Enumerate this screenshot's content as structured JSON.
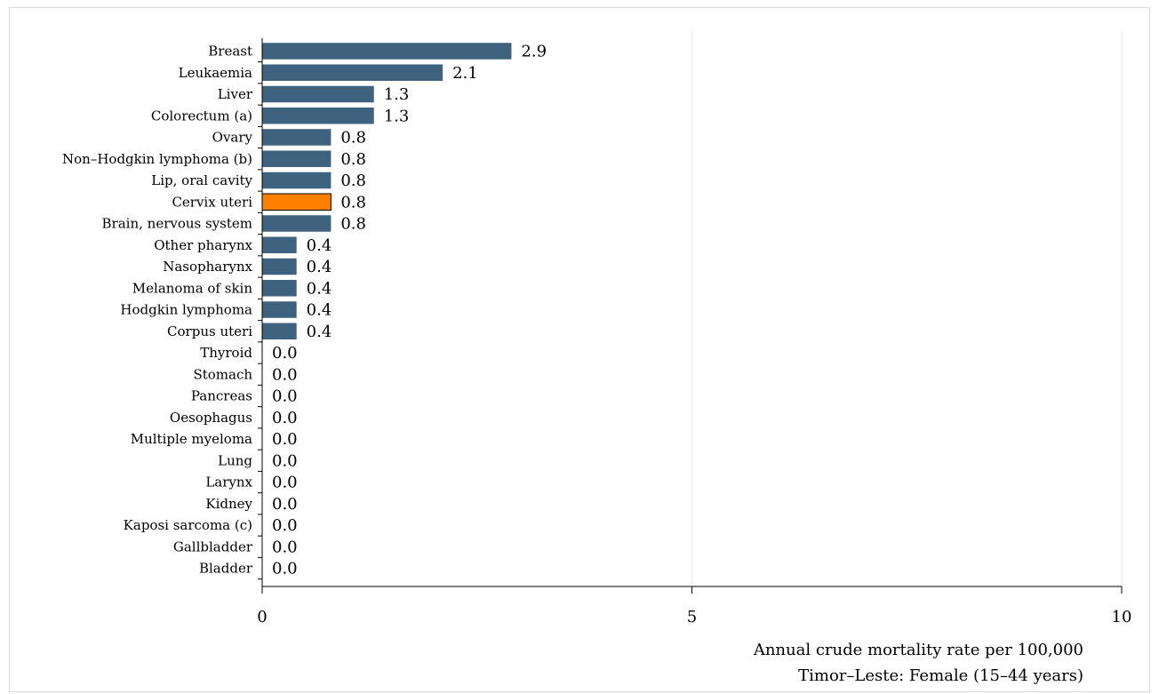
{
  "chart_data": {
    "type": "bar",
    "orientation": "horizontal",
    "categories": [
      "Breast",
      "Leukaemia",
      "Liver",
      "Colorectum (a)",
      "Ovary",
      "Non–Hodgkin lymphoma (b)",
      "Lip, oral cavity",
      "Cervix uteri",
      "Brain, nervous system",
      "Other pharynx",
      "Nasopharynx",
      "Melanoma of skin",
      "Hodgkin lymphoma",
      "Corpus uteri",
      "Thyroid",
      "Stomach",
      "Pancreas",
      "Oesophagus",
      "Multiple myeloma",
      "Lung",
      "Larynx",
      "Kidney",
      "Kaposi sarcoma (c)",
      "Gallbladder",
      "Bladder"
    ],
    "values": [
      2.9,
      2.1,
      1.3,
      1.3,
      0.8,
      0.8,
      0.8,
      0.8,
      0.8,
      0.4,
      0.4,
      0.4,
      0.4,
      0.4,
      0.0,
      0.0,
      0.0,
      0.0,
      0.0,
      0.0,
      0.0,
      0.0,
      0.0,
      0.0,
      0.0
    ],
    "value_labels": [
      "2.9",
      "2.1",
      "1.3",
      "1.3",
      "0.8",
      "0.8",
      "0.8",
      "0.8",
      "0.8",
      "0.4",
      "0.4",
      "0.4",
      "0.4",
      "0.4",
      "0.0",
      "0.0",
      "0.0",
      "0.0",
      "0.0",
      "0.0",
      "0.0",
      "0.0",
      "0.0",
      "0.0",
      "0.0"
    ],
    "highlight_category": "Cervix uteri",
    "xlim": [
      0,
      10
    ],
    "xticks": [
      0,
      5,
      10
    ],
    "xtick_labels": [
      "0",
      "5",
      "10"
    ],
    "xlabel": "Annual crude mortality rate per 100,000",
    "subtitle": "Timor–Leste: Female (15–44 years)",
    "grid": "vertical",
    "colors": {
      "bar": "#3f627f",
      "highlight": "#ff8000",
      "grid": "#e6e6e6",
      "axis": "#000000"
    }
  }
}
